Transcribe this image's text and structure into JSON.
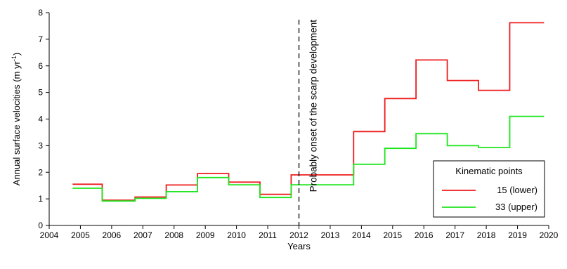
{
  "chart_data": {
    "type": "line",
    "step": true,
    "xlabel": "Years",
    "ylabel_main": "Annual surface velocities (m yr",
    "ylabel_sup": "-1",
    "ylabel_close": ")",
    "xlim": [
      2004,
      2020
    ],
    "ylim": [
      0,
      8
    ],
    "x_ticks": [
      "2004",
      "2005",
      "2006",
      "2007",
      "2008",
      "2009",
      "2010",
      "2011",
      "2012",
      "2013",
      "2014",
      "2015",
      "2016",
      "2017",
      "2018",
      "2019",
      "2020"
    ],
    "y_ticks": [
      "0",
      "1",
      "2",
      "3",
      "4",
      "5",
      "6",
      "7",
      "8"
    ],
    "grid": false,
    "annotation": {
      "x": 2012,
      "text": "Probably onset of the scarp development",
      "line_style": "dashed"
    },
    "legend": {
      "title": "Kinematic points",
      "position": "bottom-right"
    },
    "series": [
      {
        "name": "15 (lower)",
        "color": "#ee1c1c",
        "steps": [
          {
            "start": 2004.75,
            "end": 2005.7,
            "value": 1.55
          },
          {
            "start": 2005.7,
            "end": 2006.75,
            "value": 0.95
          },
          {
            "start": 2006.75,
            "end": 2007.75,
            "value": 1.07
          },
          {
            "start": 2007.75,
            "end": 2008.75,
            "value": 1.52
          },
          {
            "start": 2008.75,
            "end": 2009.75,
            "value": 1.95
          },
          {
            "start": 2009.75,
            "end": 2010.75,
            "value": 1.63
          },
          {
            "start": 2010.75,
            "end": 2011.75,
            "value": 1.17
          },
          {
            "start": 2011.75,
            "end": 2013.75,
            "value": 1.9
          },
          {
            "start": 2013.75,
            "end": 2014.75,
            "value": 3.53
          },
          {
            "start": 2014.75,
            "end": 2015.75,
            "value": 4.77
          },
          {
            "start": 2015.75,
            "end": 2016.75,
            "value": 6.22
          },
          {
            "start": 2016.75,
            "end": 2017.75,
            "value": 5.45
          },
          {
            "start": 2017.75,
            "end": 2018.75,
            "value": 5.08
          },
          {
            "start": 2018.75,
            "end": 2019.85,
            "value": 7.62
          }
        ]
      },
      {
        "name": "33 (upper)",
        "color": "#1ee51e",
        "steps": [
          {
            "start": 2004.75,
            "end": 2005.7,
            "value": 1.4
          },
          {
            "start": 2005.7,
            "end": 2006.75,
            "value": 0.92
          },
          {
            "start": 2006.75,
            "end": 2007.75,
            "value": 1.02
          },
          {
            "start": 2007.75,
            "end": 2008.75,
            "value": 1.27
          },
          {
            "start": 2008.75,
            "end": 2009.75,
            "value": 1.8
          },
          {
            "start": 2009.75,
            "end": 2010.75,
            "value": 1.53
          },
          {
            "start": 2010.75,
            "end": 2011.75,
            "value": 1.05
          },
          {
            "start": 2011.75,
            "end": 2013.75,
            "value": 1.53
          },
          {
            "start": 2013.75,
            "end": 2014.75,
            "value": 2.3
          },
          {
            "start": 2014.75,
            "end": 2015.75,
            "value": 2.9
          },
          {
            "start": 2015.75,
            "end": 2016.75,
            "value": 3.45
          },
          {
            "start": 2016.75,
            "end": 2017.75,
            "value": 3.0
          },
          {
            "start": 2017.75,
            "end": 2018.75,
            "value": 2.93
          },
          {
            "start": 2018.75,
            "end": 2019.85,
            "value": 4.1
          }
        ]
      }
    ]
  }
}
